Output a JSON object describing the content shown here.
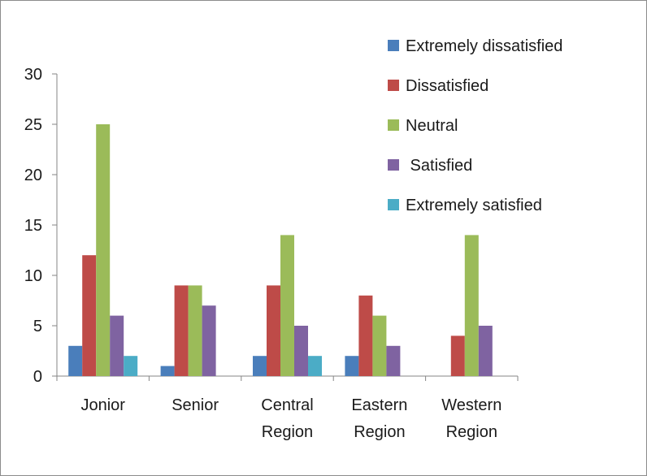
{
  "chart_data": {
    "type": "bar",
    "categories": [
      [
        "Jonior"
      ],
      [
        "Senior"
      ],
      [
        "Central",
        "Region"
      ],
      [
        "Eastern",
        "Region"
      ],
      [
        "Western",
        "Region"
      ]
    ],
    "series": [
      {
        "name": "Extremely dissatisfied",
        "color": "#4a7ebb",
        "values": [
          3,
          1,
          2,
          2,
          null
        ]
      },
      {
        "name": "Dissatisfied",
        "color": "#be4b48",
        "values": [
          12,
          9,
          9,
          8,
          4
        ]
      },
      {
        "name": "Neutral",
        "color": "#9bbb59",
        "values": [
          25,
          9,
          14,
          6,
          14
        ]
      },
      {
        "name": " Satisfied",
        "color": "#7f63a1",
        "values": [
          6,
          7,
          5,
          3,
          5
        ]
      },
      {
        "name": "Extremely satisfied",
        "color": "#4bacc6",
        "values": [
          2,
          null,
          2,
          null,
          null
        ]
      }
    ],
    "yticks": [
      0,
      5,
      10,
      15,
      20,
      25,
      30
    ],
    "ylim": [
      0,
      30
    ],
    "grid": false,
    "legend_position": "top-right"
  }
}
